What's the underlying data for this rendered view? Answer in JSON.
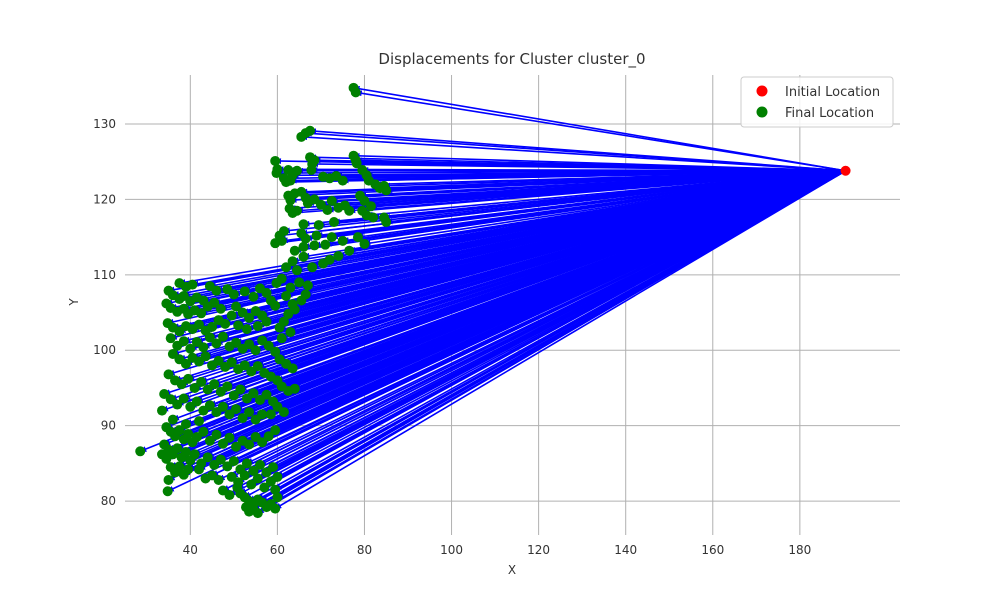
{
  "chart_data": {
    "type": "scatter",
    "title": "Displacements for Cluster cluster_0",
    "xlabel": "X",
    "ylabel": "Y",
    "xlim": [
      25,
      203
    ],
    "ylim": [
      75.5,
      136.5
    ],
    "xticks": [
      40,
      60,
      80,
      100,
      120,
      140,
      160,
      180
    ],
    "yticks": [
      80,
      90,
      100,
      110,
      120,
      130
    ],
    "grid": true,
    "legend_position": "top-right",
    "colors": {
      "initial": "#ff0000",
      "final": "#008000",
      "arrow": "#0000ff",
      "grid": "#b0b0b0"
    },
    "series": [
      {
        "name": "Initial Location",
        "color": "#ff0000",
        "points": [
          [
            190.5,
            123.8
          ]
        ]
      },
      {
        "name": "Final Location",
        "color": "#008000",
        "points": [
          [
            77.5,
            134.8
          ],
          [
            78.0,
            134.2
          ],
          [
            66.5,
            128.8
          ],
          [
            67.5,
            129.1
          ],
          [
            65.5,
            128.3
          ],
          [
            59.5,
            125.1
          ],
          [
            60.0,
            124.0
          ],
          [
            59.8,
            123.5
          ],
          [
            62.5,
            123.9
          ],
          [
            63.5,
            123.2
          ],
          [
            64.5,
            123.8
          ],
          [
            61.5,
            122.8
          ],
          [
            62.0,
            122.3
          ],
          [
            63.0,
            122.5
          ],
          [
            67.5,
            125.6
          ],
          [
            68.0,
            124.7
          ],
          [
            68.5,
            125.2
          ],
          [
            67.8,
            123.9
          ],
          [
            70.5,
            123.0
          ],
          [
            72.0,
            122.8
          ],
          [
            73.5,
            123.1
          ],
          [
            75.0,
            122.5
          ],
          [
            77.5,
            125.8
          ],
          [
            78.0,
            125.2
          ],
          [
            78.2,
            124.8
          ],
          [
            79.5,
            123.9
          ],
          [
            80.5,
            123.2
          ],
          [
            81.0,
            122.5
          ],
          [
            82.5,
            122.0
          ],
          [
            83.5,
            121.5
          ],
          [
            84.5,
            121.8
          ],
          [
            85.0,
            121.2
          ],
          [
            62.5,
            120.5
          ],
          [
            63.0,
            119.9
          ],
          [
            64.0,
            120.8
          ],
          [
            65.5,
            121.0
          ],
          [
            66.5,
            120.2
          ],
          [
            62.8,
            118.8
          ],
          [
            63.5,
            118.2
          ],
          [
            64.5,
            118.5
          ],
          [
            67.0,
            119.5
          ],
          [
            68.5,
            120.0
          ],
          [
            70.0,
            119.3
          ],
          [
            71.5,
            118.6
          ],
          [
            72.5,
            119.8
          ],
          [
            74.0,
            118.9
          ],
          [
            75.5,
            119.2
          ],
          [
            76.5,
            118.5
          ],
          [
            79.0,
            120.5
          ],
          [
            80.0,
            119.8
          ],
          [
            81.5,
            119.1
          ],
          [
            79.5,
            118.5
          ],
          [
            80.5,
            117.9
          ],
          [
            82.0,
            117.6
          ],
          [
            84.5,
            117.6
          ],
          [
            85.0,
            117.0
          ],
          [
            66.0,
            116.7
          ],
          [
            69.5,
            116.6
          ],
          [
            73.0,
            117.0
          ],
          [
            65.5,
            115.5
          ],
          [
            66.5,
            114.8
          ],
          [
            69.0,
            115.2
          ],
          [
            72.5,
            115.0
          ],
          [
            75.0,
            114.5
          ],
          [
            60.5,
            115.2
          ],
          [
            61.0,
            114.5
          ],
          [
            61.5,
            115.8
          ],
          [
            59.5,
            114.2
          ],
          [
            64.0,
            113.2
          ],
          [
            66.0,
            113.7
          ],
          [
            68.5,
            113.9
          ],
          [
            71.0,
            114.0
          ],
          [
            78.5,
            115.0
          ],
          [
            80.0,
            114.1
          ],
          [
            76.5,
            113.2
          ],
          [
            74.0,
            112.5
          ],
          [
            72.0,
            112.0
          ],
          [
            70.5,
            111.5
          ],
          [
            68.0,
            111.0
          ],
          [
            66.0,
            112.4
          ],
          [
            62.0,
            111.0
          ],
          [
            63.5,
            111.8
          ],
          [
            64.5,
            110.6
          ],
          [
            61.0,
            109.5
          ],
          [
            59.8,
            108.9
          ],
          [
            63.0,
            108.3
          ],
          [
            65.0,
            109.0
          ],
          [
            67.0,
            108.6
          ],
          [
            37.5,
            108.9
          ],
          [
            39.0,
            108.4
          ],
          [
            40.5,
            108.7
          ],
          [
            35.0,
            107.9
          ],
          [
            36.0,
            107.3
          ],
          [
            37.5,
            106.8
          ],
          [
            38.5,
            107.2
          ],
          [
            40.0,
            106.5
          ],
          [
            41.5,
            107.0
          ],
          [
            43.0,
            106.6
          ],
          [
            34.5,
            106.2
          ],
          [
            35.5,
            105.6
          ],
          [
            37.0,
            105.1
          ],
          [
            38.5,
            105.5
          ],
          [
            39.5,
            104.8
          ],
          [
            41.0,
            105.3
          ],
          [
            42.5,
            104.9
          ],
          [
            44.0,
            105.8
          ],
          [
            45.5,
            106.3
          ],
          [
            47.0,
            105.5
          ],
          [
            34.8,
            103.6
          ],
          [
            36.0,
            103.0
          ],
          [
            37.5,
            102.5
          ],
          [
            39.0,
            103.2
          ],
          [
            40.5,
            102.8
          ],
          [
            42.0,
            103.4
          ],
          [
            43.5,
            102.6
          ],
          [
            45.0,
            103.1
          ],
          [
            46.5,
            104.0
          ],
          [
            48.0,
            103.5
          ],
          [
            49.5,
            104.6
          ],
          [
            50.5,
            105.8
          ],
          [
            52.0,
            105.0
          ],
          [
            53.5,
            104.3
          ],
          [
            55.0,
            105.2
          ],
          [
            56.5,
            104.6
          ],
          [
            57.5,
            103.8
          ],
          [
            55.5,
            103.2
          ],
          [
            53.0,
            102.8
          ],
          [
            51.0,
            103.3
          ],
          [
            56.0,
            108.2
          ],
          [
            57.5,
            107.6
          ],
          [
            54.5,
            107.1
          ],
          [
            52.5,
            107.8
          ],
          [
            50.0,
            107.4
          ],
          [
            48.5,
            108.1
          ],
          [
            46.0,
            107.9
          ],
          [
            44.5,
            108.5
          ],
          [
            58.5,
            106.6
          ],
          [
            59.5,
            105.9
          ],
          [
            62.0,
            107.2
          ],
          [
            63.5,
            106.1
          ],
          [
            62.5,
            104.8
          ],
          [
            65.5,
            106.6
          ],
          [
            64.0,
            105.4
          ],
          [
            66.5,
            107.4
          ],
          [
            61.5,
            103.8
          ],
          [
            60.5,
            103.0
          ],
          [
            63.0,
            102.4
          ],
          [
            61.0,
            101.6
          ],
          [
            35.5,
            101.6
          ],
          [
            37.0,
            100.6
          ],
          [
            38.5,
            101.2
          ],
          [
            40.0,
            100.2
          ],
          [
            41.5,
            101.1
          ],
          [
            43.0,
            100.4
          ],
          [
            44.5,
            101.7
          ],
          [
            46.0,
            100.9
          ],
          [
            47.5,
            101.8
          ],
          [
            49.0,
            100.5
          ],
          [
            50.5,
            101.0
          ],
          [
            52.0,
            100.2
          ],
          [
            53.5,
            100.8
          ],
          [
            55.0,
            100.0
          ],
          [
            56.5,
            101.3
          ],
          [
            58.0,
            100.6
          ],
          [
            59.5,
            99.8
          ],
          [
            60.5,
            98.8
          ],
          [
            62.0,
            98.2
          ],
          [
            63.5,
            97.6
          ],
          [
            36.0,
            99.5
          ],
          [
            37.5,
            98.8
          ],
          [
            39.0,
            98.2
          ],
          [
            40.5,
            99.0
          ],
          [
            42.0,
            98.5
          ],
          [
            43.5,
            99.2
          ],
          [
            45.0,
            98.0
          ],
          [
            46.5,
            98.6
          ],
          [
            48.0,
            97.8
          ],
          [
            49.5,
            98.4
          ],
          [
            51.0,
            97.5
          ],
          [
            52.5,
            98.0
          ],
          [
            54.0,
            97.2
          ],
          [
            55.5,
            97.9
          ],
          [
            57.0,
            97.0
          ],
          [
            58.5,
            96.5
          ],
          [
            60.0,
            96.0
          ],
          [
            61.0,
            95.2
          ],
          [
            62.5,
            94.6
          ],
          [
            64.0,
            94.9
          ],
          [
            35.0,
            96.8
          ],
          [
            36.5,
            96.0
          ],
          [
            38.0,
            95.5
          ],
          [
            39.5,
            96.2
          ],
          [
            41.0,
            95.0
          ],
          [
            42.5,
            95.8
          ],
          [
            44.0,
            94.8
          ],
          [
            45.5,
            95.5
          ],
          [
            47.0,
            94.5
          ],
          [
            48.5,
            95.2
          ],
          [
            50.0,
            94.0
          ],
          [
            51.5,
            94.8
          ],
          [
            53.0,
            93.6
          ],
          [
            54.5,
            94.3
          ],
          [
            56.0,
            93.4
          ],
          [
            57.5,
            94.1
          ],
          [
            59.0,
            93.2
          ],
          [
            60.0,
            92.5
          ],
          [
            61.5,
            91.8
          ],
          [
            58.5,
            91.5
          ],
          [
            34.0,
            94.2
          ],
          [
            35.5,
            93.5
          ],
          [
            37.0,
            92.8
          ],
          [
            38.5,
            93.6
          ],
          [
            40.0,
            92.5
          ],
          [
            41.5,
            93.2
          ],
          [
            43.0,
            92.0
          ],
          [
            44.5,
            92.7
          ],
          [
            46.0,
            91.8
          ],
          [
            47.5,
            92.5
          ],
          [
            49.0,
            91.5
          ],
          [
            50.5,
            92.2
          ],
          [
            52.0,
            91.0
          ],
          [
            53.5,
            91.8
          ],
          [
            55.0,
            90.8
          ],
          [
            56.5,
            91.5
          ],
          [
            33.5,
            92.0
          ],
          [
            36.0,
            90.8
          ],
          [
            39.0,
            90.2
          ],
          [
            42.0,
            90.6
          ],
          [
            34.5,
            89.8
          ],
          [
            35.5,
            89.2
          ],
          [
            36.5,
            88.6
          ],
          [
            37.5,
            89.4
          ],
          [
            38.5,
            88.2
          ],
          [
            39.5,
            88.9
          ],
          [
            40.5,
            87.8
          ],
          [
            41.5,
            88.5
          ],
          [
            43.0,
            89.2
          ],
          [
            44.5,
            88.0
          ],
          [
            46.0,
            88.8
          ],
          [
            47.5,
            87.6
          ],
          [
            49.0,
            88.4
          ],
          [
            50.5,
            87.2
          ],
          [
            52.0,
            88.0
          ],
          [
            53.5,
            87.5
          ],
          [
            55.0,
            88.5
          ],
          [
            56.5,
            87.8
          ],
          [
            58.0,
            88.6
          ],
          [
            59.5,
            89.4
          ],
          [
            34.0,
            87.5
          ],
          [
            35.0,
            86.8
          ],
          [
            36.0,
            86.2
          ],
          [
            37.0,
            87.0
          ],
          [
            38.0,
            85.8
          ],
          [
            39.0,
            86.5
          ],
          [
            40.0,
            85.4
          ],
          [
            41.0,
            86.2
          ],
          [
            42.5,
            85.0
          ],
          [
            44.0,
            85.8
          ],
          [
            45.5,
            84.8
          ],
          [
            47.0,
            85.5
          ],
          [
            48.5,
            84.6
          ],
          [
            50.0,
            85.3
          ],
          [
            51.5,
            84.2
          ],
          [
            53.0,
            85.0
          ],
          [
            54.5,
            84.0
          ],
          [
            56.0,
            84.8
          ],
          [
            57.5,
            83.8
          ],
          [
            59.0,
            84.5
          ],
          [
            28.5,
            86.6
          ],
          [
            33.5,
            86.2
          ],
          [
            34.5,
            85.6
          ],
          [
            35.5,
            84.5
          ],
          [
            36.5,
            83.8
          ],
          [
            37.5,
            84.6
          ],
          [
            38.5,
            83.5
          ],
          [
            39.5,
            84.2
          ],
          [
            35.0,
            82.8
          ],
          [
            34.8,
            81.3
          ],
          [
            46.5,
            82.8
          ],
          [
            49.5,
            83.2
          ],
          [
            51.0,
            82.5
          ],
          [
            52.5,
            83.4
          ],
          [
            54.0,
            82.2
          ],
          [
            55.5,
            83.0
          ],
          [
            57.0,
            81.8
          ],
          [
            58.5,
            82.6
          ],
          [
            60.0,
            83.2
          ],
          [
            59.5,
            81.5
          ],
          [
            51.5,
            81.0
          ],
          [
            52.5,
            80.5
          ],
          [
            53.5,
            80.0
          ],
          [
            54.5,
            79.6
          ],
          [
            55.5,
            80.2
          ],
          [
            56.5,
            79.8
          ],
          [
            57.5,
            79.2
          ],
          [
            58.5,
            79.6
          ],
          [
            59.5,
            79.0
          ],
          [
            60.0,
            80.5
          ],
          [
            53.5,
            78.6
          ],
          [
            54.5,
            78.9
          ],
          [
            55.5,
            78.4
          ],
          [
            52.8,
            79.2
          ],
          [
            50.8,
            81.8
          ],
          [
            49.0,
            80.8
          ],
          [
            47.5,
            81.4
          ],
          [
            45.0,
            83.4
          ],
          [
            43.5,
            83.0
          ],
          [
            42.0,
            84.2
          ]
        ]
      }
    ]
  }
}
